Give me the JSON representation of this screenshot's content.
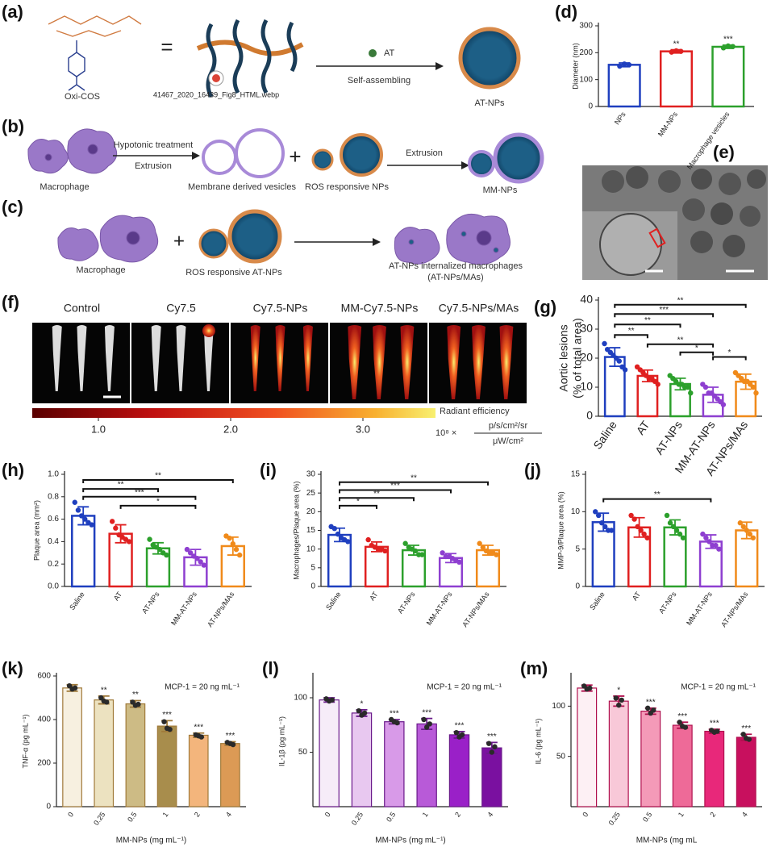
{
  "figure": {
    "panel_a": {
      "label": "(a)",
      "polymer": "Oxi-COS",
      "equals": "=",
      "image_alt": "41467_2020_16439_Fig8_HTML.webp",
      "drug": "AT",
      "process": "Self-assembling",
      "product": "AT-NPs"
    },
    "panel_b": {
      "label": "(b)",
      "cell": "Macrophage",
      "step1_top": "Hypotonic treatment",
      "step1_bottom": "Extrusion",
      "vesicles": "Membrane derived vesicles",
      "plus": "+",
      "nps": "ROS responsive NPs",
      "step2": "Extrusion",
      "product": "MM-NPs"
    },
    "panel_c": {
      "label": "(c)",
      "cell": "Macrophage",
      "plus": "+",
      "nps": "ROS responsive AT-NPs",
      "product_line1": "AT-NPs internalized macrophages",
      "product_line2": "(AT-NPs/MAs)"
    },
    "panel_e": {
      "label": "(e)"
    },
    "panel_f": {
      "label": "(f)",
      "groups": [
        "Control",
        "Cy7.5",
        "Cy7.5-NPs",
        "MM-Cy7.5-NPs",
        "Cy7.5-NPs/MAs"
      ],
      "colorbar_ticks": [
        "1.0",
        "2.0",
        "3.0"
      ],
      "colorbar_title": "Radiant efficiency",
      "colorbar_scale": "10⁸ ×",
      "colorbar_unit_top": "p/s/cm²/sr",
      "colorbar_unit_bottom": "μW/cm²"
    }
  },
  "chart_data": [
    {
      "type": "bar",
      "panel": "(d)",
      "style": "outline",
      "ylabel": "Diameter (nm)",
      "categories": [
        "NPs",
        "MM-NPs",
        "Macrophage vesicles"
      ],
      "values": [
        155,
        205,
        222
      ],
      "errors": [
        7,
        6,
        6
      ],
      "points": [
        [
          150,
          158,
          155
        ],
        [
          202,
          207,
          205
        ],
        [
          218,
          225,
          223
        ]
      ],
      "value_annotations": [
        null,
        "**",
        "***"
      ],
      "colors": [
        "#1f3fbf",
        "#e02020",
        "#2ca02c"
      ],
      "ylim": [
        0,
        300
      ],
      "yticks": [
        0,
        100,
        200,
        300
      ],
      "brackets": []
    },
    {
      "type": "bar",
      "panel": "(g)",
      "style": "outline",
      "ylabel": [
        "Aortic lesions",
        "(% of total area)"
      ],
      "categories": [
        "Saline",
        "AT",
        "AT-NPs",
        "MM-AT-NPs",
        "AT-NPs/MAs"
      ],
      "values": [
        20.4,
        13.9,
        11.1,
        7.4,
        11.9
      ],
      "errors": [
        3.2,
        2.0,
        2.0,
        2.6,
        2.6
      ],
      "points": [
        [
          25,
          23,
          22,
          21,
          20,
          19,
          17,
          16
        ],
        [
          17,
          16,
          15,
          14,
          13,
          13,
          12,
          11
        ],
        [
          14,
          13,
          12,
          11,
          11,
          10,
          10,
          8
        ],
        [
          11,
          10,
          8,
          8,
          7,
          6,
          5,
          4
        ],
        [
          15,
          14,
          13,
          12,
          12,
          11,
          10,
          8
        ]
      ],
      "colors": [
        "#1f3fbf",
        "#e02020",
        "#2ca02c",
        "#8e3fd0",
        "#f08a1a"
      ],
      "ylim": [
        0,
        40
      ],
      "yticks": [
        0,
        10,
        20,
        30,
        40
      ],
      "brackets": [
        "**",
        "**",
        "***",
        "**",
        "**",
        "*",
        "*"
      ]
    },
    {
      "type": "bar",
      "panel": "(h)",
      "style": "outline",
      "ylabel": "Plaque area (mm²)",
      "categories": [
        "Saline",
        "AT",
        "AT-NPs",
        "MM-AT-NPs",
        "AT-NPs/MAs"
      ],
      "values": [
        0.63,
        0.47,
        0.34,
        0.26,
        0.36
      ],
      "errors": [
        0.08,
        0.08,
        0.05,
        0.07,
        0.08
      ],
      "points": [
        [
          0.75,
          0.68,
          0.63,
          0.6,
          0.57,
          0.55
        ],
        [
          0.58,
          0.52,
          0.46,
          0.44,
          0.42,
          0.4
        ],
        [
          0.42,
          0.37,
          0.35,
          0.33,
          0.3,
          0.28
        ],
        [
          0.33,
          0.3,
          0.27,
          0.25,
          0.22,
          0.19
        ],
        [
          0.45,
          0.43,
          0.38,
          0.33,
          0.28
        ]
      ],
      "colors": [
        "#1f3fbf",
        "#e02020",
        "#2ca02c",
        "#8e3fd0",
        "#f08a1a"
      ],
      "ylim": [
        0,
        1
      ],
      "yticks": [
        {
          "value": 0,
          "label": "0.0"
        },
        0.2,
        0.4,
        0.6,
        0.8,
        {
          "value": 1,
          "label": "1.0"
        }
      ],
      "brackets": [
        "**",
        "**",
        "***",
        "*"
      ]
    },
    {
      "type": "bar",
      "panel": "(i)",
      "style": "outline",
      "ylabel": "Macrophages/Plaque area (%)",
      "categories": [
        "Saline",
        "AT",
        "AT-NPs",
        "MM-AT-NPs",
        "AT-NPs/MAs"
      ],
      "values": [
        13.8,
        10.6,
        9.7,
        7.6,
        9.7
      ],
      "errors": [
        1.8,
        1.3,
        1.3,
        1.2,
        1.3
      ],
      "points": [
        [
          16,
          15.5,
          14,
          13,
          12.5,
          12
        ],
        [
          12.5,
          11,
          10.5,
          10,
          10,
          9.5
        ],
        [
          11.5,
          10.5,
          10,
          9.5,
          8.5,
          8.5
        ],
        [
          9,
          8,
          8,
          7.5,
          7,
          6.5
        ],
        [
          11.5,
          10.5,
          9.5,
          9,
          9,
          8.5
        ]
      ],
      "colors": [
        "#1f3fbf",
        "#e02020",
        "#2ca02c",
        "#8e3fd0",
        "#f08a1a"
      ],
      "ylim": [
        0,
        30
      ],
      "yticks": [
        0,
        5,
        10,
        15,
        20,
        25,
        30
      ],
      "brackets": [
        "**",
        "***",
        "**",
        "*"
      ]
    },
    {
      "type": "bar",
      "panel": "(j)",
      "style": "outline",
      "ylabel": "MMP-9/Plaque area (%)",
      "categories": [
        "Saline",
        "AT",
        "AT-NPs",
        "MM-AT-NPs",
        "AT-NPs/MAs"
      ],
      "values": [
        8.6,
        7.9,
        7.9,
        6.0,
        7.5
      ],
      "errors": [
        1.2,
        1.3,
        1.0,
        0.9,
        1.1
      ],
      "points": [
        [
          10,
          9.5,
          8.5,
          8,
          7.5,
          7.5
        ],
        [
          9.5,
          9,
          8,
          7.5,
          7,
          6.5
        ],
        [
          9.5,
          8.5,
          8,
          7.5,
          7,
          6.5
        ],
        [
          7,
          6.5,
          6,
          5.5,
          5.5,
          5
        ],
        [
          8.5,
          8,
          7.5,
          7,
          6.5
        ]
      ],
      "colors": [
        "#1f3fbf",
        "#e02020",
        "#2ca02c",
        "#8e3fd0",
        "#f08a1a"
      ],
      "ylim": [
        0,
        15
      ],
      "yticks": [
        0,
        5,
        10,
        15
      ],
      "brackets": [
        "**"
      ]
    },
    {
      "type": "bar",
      "panel": "(k)",
      "style": "filled",
      "ylabel": "TNF-α (pg mL⁻¹)",
      "xlabel": "MM-NPs (mg mL⁻¹)",
      "note": "MCP-1 = 20 ng mL⁻¹",
      "categories": [
        "0",
        "0.25",
        "0.5",
        "1",
        "2",
        "4"
      ],
      "values": [
        545,
        490,
        472,
        370,
        328,
        290
      ],
      "errors": [
        15,
        18,
        15,
        25,
        10,
        8
      ],
      "points": [
        [
          555,
          540,
          545
        ],
        [
          500,
          485,
          480
        ],
        [
          480,
          465,
          470
        ],
        [
          390,
          360,
          355
        ],
        [
          330,
          325,
          320
        ],
        [
          295,
          290,
          285
        ]
      ],
      "value_annotations": [
        null,
        "**",
        "**",
        "***",
        "***",
        "***"
      ],
      "colors": [
        "#f7f0e0",
        "#ece2c0",
        "#cdbb85",
        "#a88d4c",
        "#f3b57c",
        "#dc9a55"
      ],
      "edgecolor": "#a07a3a",
      "point_color": "#2a2a2a",
      "ylim": [
        0,
        600
      ],
      "yticks": [
        0,
        200,
        400,
        600
      ],
      "brackets": []
    },
    {
      "type": "bar",
      "panel": "(l)",
      "style": "filled",
      "ylabel": "IL-1β (pg mL⁻¹)",
      "xlabel": "MM-NPs (mg mL⁻¹)",
      "note": "MCP-1 = 20 ng mL⁻¹",
      "categories": [
        "0",
        "0.25",
        "0.5",
        "1",
        "2",
        "4"
      ],
      "values": [
        98,
        86,
        78,
        76,
        66,
        54
      ],
      "errors": [
        2,
        3,
        2,
        5,
        3,
        5
      ],
      "points": [
        [
          99,
          97,
          98
        ],
        [
          88,
          84,
          86
        ],
        [
          80,
          78,
          77
        ],
        [
          80,
          73,
          76
        ],
        [
          68,
          64,
          66
        ],
        [
          58,
          50,
          55
        ]
      ],
      "value_annotations": [
        null,
        "*",
        "***",
        "***",
        "***",
        "***"
      ],
      "colors": [
        "#f6ecf8",
        "#e8c8f0",
        "#d89ae8",
        "#b85ad8",
        "#9a20c8",
        "#7a10a0"
      ],
      "edgecolor": "#6a1a8a",
      "point_color": "#2a2a2a",
      "ylim": [
        0,
        120
      ],
      "yticks": [
        50,
        100
      ],
      "brackets": []
    },
    {
      "type": "bar",
      "panel": "(m)",
      "style": "filled",
      "ylabel": "IL-6 (pg mL⁻¹)",
      "xlabel": "MM-NPs (mg mL",
      "note": "MCP-1 = 20 ng mL⁻¹",
      "categories": [
        "0",
        "0.25",
        "0.5",
        "1",
        "2",
        "4"
      ],
      "values": [
        118,
        105,
        95,
        81,
        75,
        69
      ],
      "errors": [
        3,
        5,
        3,
        3,
        2,
        3
      ],
      "points": [
        [
          120,
          117,
          118
        ],
        [
          108,
          101,
          106
        ],
        [
          98,
          93,
          96
        ],
        [
          84,
          80,
          79
        ],
        [
          76,
          74,
          75
        ],
        [
          72,
          68,
          67
        ]
      ],
      "value_annotations": [
        null,
        "*",
        "***",
        "***",
        "***",
        "***"
      ],
      "colors": [
        "#fdf0f4",
        "#f8c8d8",
        "#f49ab8",
        "#ee6a98",
        "#e8287a",
        "#c8105e"
      ],
      "edgecolor": "#b0104e",
      "point_color": "#2a2a2a",
      "ylim": [
        0,
        130
      ],
      "yticks": [
        50,
        100
      ],
      "brackets": []
    }
  ]
}
